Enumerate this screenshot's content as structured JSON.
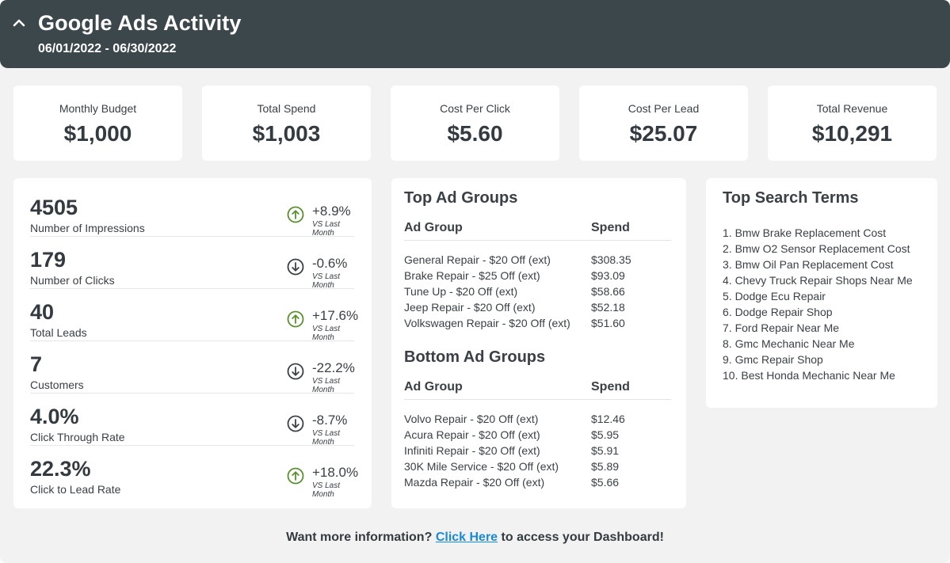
{
  "header": {
    "title": "Google Ads Activity",
    "date_range": "06/01/2022 - 06/30/2022",
    "collapse_icon": "chevron-up-icon"
  },
  "kpis": [
    {
      "label": "Monthly Budget",
      "value": "$1,000"
    },
    {
      "label": "Total Spend",
      "value": "$1,003"
    },
    {
      "label": "Cost Per Click",
      "value": "$5.60"
    },
    {
      "label": "Cost Per Lead",
      "value": "$25.07"
    },
    {
      "label": "Total Revenue",
      "value": "$10,291"
    }
  ],
  "metrics": [
    {
      "value": "4505",
      "label": "Number of Impressions",
      "change": "+8.9%",
      "vs": "VS Last Month",
      "direction": "up"
    },
    {
      "value": "179",
      "label": "Number of Clicks",
      "change": "-0.6%",
      "vs": "VS Last Month",
      "direction": "down"
    },
    {
      "value": "40",
      "label": "Total Leads",
      "change": "+17.6%",
      "vs": "VS Last Month",
      "direction": "up"
    },
    {
      "value": "7",
      "label": "Customers",
      "change": "-22.2%",
      "vs": "VS Last Month",
      "direction": "down"
    },
    {
      "value": "4.0%",
      "label": "Click Through Rate",
      "change": "-8.7%",
      "vs": "VS Last Month",
      "direction": "down"
    },
    {
      "value": "22.3%",
      "label": "Click to Lead Rate",
      "change": "+18.0%",
      "vs": "VS Last Month",
      "direction": "up"
    }
  ],
  "colors": {
    "up": "#5a8f2e",
    "down": "#3a4045",
    "link": "#1a8ad6",
    "header": "#3c474c"
  },
  "top_ad_groups": {
    "title": "Top Ad Groups",
    "col_group": "Ad Group",
    "col_spend": "Spend",
    "rows": [
      {
        "group": "General Repair - $20 Off (ext)",
        "spend": "$308.35"
      },
      {
        "group": "Brake Repair - $25 Off (ext)",
        "spend": "$93.09"
      },
      {
        "group": "Tune Up - $20 Off (ext)",
        "spend": "$58.66"
      },
      {
        "group": "Jeep Repair - $20 Off (ext)",
        "spend": "$52.18"
      },
      {
        "group": "Volkswagen Repair - $20 Off (ext)",
        "spend": "$51.60"
      }
    ]
  },
  "bottom_ad_groups": {
    "title": "Bottom Ad Groups",
    "col_group": "Ad Group",
    "col_spend": "Spend",
    "rows": [
      {
        "group": "Volvo Repair - $20 Off (ext)",
        "spend": "$12.46"
      },
      {
        "group": "Acura Repair - $20 Off (ext)",
        "spend": "$5.95"
      },
      {
        "group": "Infiniti Repair - $20 Off (ext)",
        "spend": "$5.91"
      },
      {
        "group": "30K Mile Service - $20 Off (ext)",
        "spend": "$5.89"
      },
      {
        "group": "Mazda Repair - $20 Off (ext)",
        "spend": "$5.66"
      }
    ]
  },
  "top_search_terms": {
    "title": "Top Search Terms",
    "items": [
      "1. Bmw Brake Replacement Cost",
      "2. Bmw O2 Sensor Replacement Cost",
      "3. Bmw Oil Pan Replacement Cost",
      "4. Chevy Truck Repair Shops Near Me",
      "5. Dodge Ecu Repair",
      "6. Dodge Repair Shop",
      "7. Ford Repair Near Me",
      "8. Gmc Mechanic Near Me",
      "9. Gmc Repair Shop",
      "10. Best Honda Mechanic Near Me"
    ]
  },
  "footer": {
    "prefix": "Want more information?",
    "link": "Click Here",
    "suffix": "to access your Dashboard!"
  }
}
